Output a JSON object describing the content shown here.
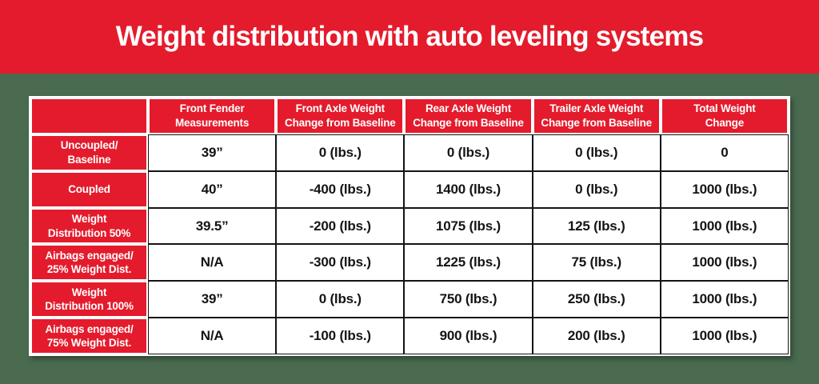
{
  "title": "Weight distribution with auto leveling systems",
  "colors": {
    "banner_red": "#E41B2C",
    "background_green": "#4A6B50",
    "table_text_black": "#141414",
    "header_text_white": "#FFFFFF"
  },
  "chart_data": {
    "type": "table",
    "title": "Weight distribution with auto leveling systems",
    "columns": [
      "",
      "Front Fender\nMeasurements",
      "Front Axle Weight\nChange from Baseline",
      "Rear Axle Weight\nChange from Baseline",
      "Trailer Axle Weight\nChange from Baseline",
      "Total Weight\nChange"
    ],
    "rows": [
      {
        "label": "Uncoupled/\nBaseline",
        "cells": [
          "39”",
          "0 (lbs.)",
          "0 (lbs.)",
          "0 (lbs.)",
          "0"
        ]
      },
      {
        "label": "Coupled",
        "cells": [
          "40”",
          "-400 (lbs.)",
          "1400 (lbs.)",
          "0 (lbs.)",
          "1000 (lbs.)"
        ]
      },
      {
        "label": "Weight\nDistribution 50%",
        "cells": [
          "39.5”",
          "-200 (lbs.)",
          "1075 (lbs.)",
          "125 (lbs.)",
          "1000 (lbs.)"
        ]
      },
      {
        "label": "Airbags engaged/\n25% Weight Dist.",
        "cells": [
          "N/A",
          "-300 (lbs.)",
          "1225 (lbs.)",
          "75 (lbs.)",
          "1000 (lbs.)"
        ]
      },
      {
        "label": "Weight\nDistribution 100%",
        "cells": [
          "39”",
          "0 (lbs.)",
          "750 (lbs.)",
          "250 (lbs.)",
          "1000 (lbs.)"
        ]
      },
      {
        "label": "Airbags engaged/\n75% Weight Dist.",
        "cells": [
          "N/A",
          "-100 (lbs.)",
          "900 (lbs.)",
          "200 (lbs.)",
          "1000 (lbs.)"
        ]
      }
    ]
  }
}
